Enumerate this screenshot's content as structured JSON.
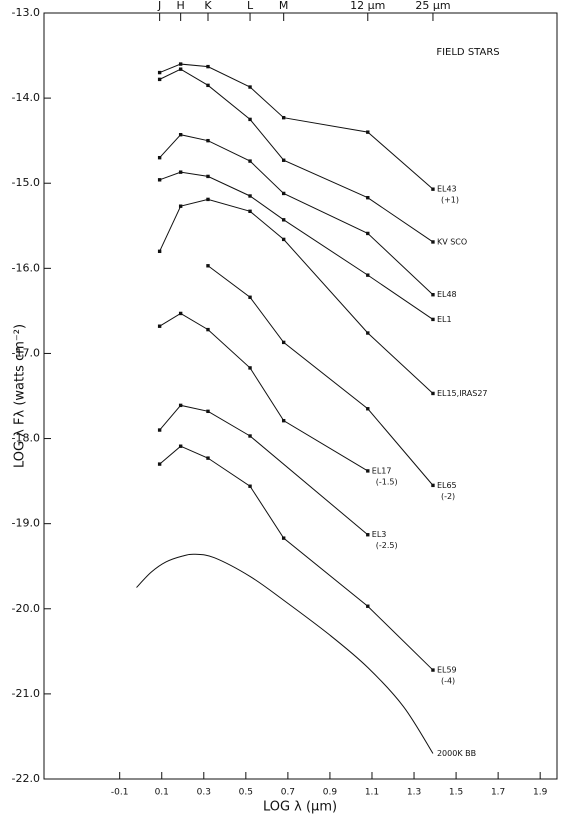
{
  "chart_data": {
    "type": "line",
    "color": "#111111",
    "annotation": "FIELD STARS",
    "xlabel": "LOG λ (μm)",
    "ylabel": "LOG λ Fλ (watts cm⁻²)",
    "xlim": [
      -0.46,
      1.98
    ],
    "ylim": [
      -22.0,
      -13.0
    ],
    "xticks": [
      -0.1,
      0.1,
      0.3,
      0.5,
      0.7,
      0.9,
      1.1,
      1.3,
      1.5,
      1.7,
      1.9
    ],
    "yticks": [
      {
        "value": -13.0,
        "label": "-13.0"
      },
      {
        "value": -14.0,
        "label": "-14.0"
      },
      {
        "value": -15.0,
        "label": "-15.0"
      },
      {
        "value": -16.0,
        "label": "-16.0"
      },
      {
        "value": -17.0,
        "label": "-17.0"
      },
      {
        "value": -18.0,
        "label": "-18.0"
      },
      {
        "value": -19.0,
        "label": "-19.0"
      },
      {
        "value": -20.0,
        "label": "-20.0"
      },
      {
        "value": -21.0,
        "label": "-21.0"
      },
      {
        "value": -22.0,
        "label": "-22.0"
      }
    ],
    "top_ticks": [
      {
        "value": 0.09,
        "label": "J"
      },
      {
        "value": 0.19,
        "label": "H"
      },
      {
        "value": 0.32,
        "label": "K"
      },
      {
        "value": 0.52,
        "label": "L"
      },
      {
        "value": 0.68,
        "label": "M"
      },
      {
        "value": 1.08,
        "label": "12 μm"
      },
      {
        "value": 1.39,
        "label": "25 μm"
      }
    ],
    "series": [
      {
        "name": "EL43",
        "note": "(+1)",
        "x": [
          0.09,
          0.19,
          0.32,
          0.52,
          0.68,
          1.08,
          1.39
        ],
        "values": [
          -13.7,
          -13.6,
          -13.63,
          -13.87,
          -14.23,
          -14.4,
          -15.07
        ]
      },
      {
        "name": "KV SCO",
        "x": [
          0.09,
          0.19,
          0.32,
          0.52,
          0.68,
          1.08,
          1.39
        ],
        "values": [
          -13.78,
          -13.66,
          -13.85,
          -14.25,
          -14.73,
          -15.17,
          -15.69
        ]
      },
      {
        "name": "EL48",
        "x": [
          0.09,
          0.19,
          0.32,
          0.52,
          0.68,
          1.08,
          1.39
        ],
        "values": [
          -14.7,
          -14.43,
          -14.5,
          -14.74,
          -15.12,
          -15.59,
          -16.31
        ]
      },
      {
        "name": "EL1",
        "x": [
          0.09,
          0.19,
          0.32,
          0.52,
          0.68,
          1.08,
          1.39
        ],
        "values": [
          -14.96,
          -14.87,
          -14.92,
          -15.15,
          -15.43,
          -16.08,
          -16.6
        ]
      },
      {
        "name": "EL15,IRAS27",
        "x": [
          0.09,
          0.19,
          0.32,
          0.52,
          0.68,
          1.08,
          1.39
        ],
        "values": [
          -15.8,
          -15.27,
          -15.19,
          -15.33,
          -15.66,
          -16.76,
          -17.47
        ]
      },
      {
        "name": "EL65",
        "note": "(-2)",
        "x": [
          0.32,
          0.52,
          0.68,
          1.08,
          1.39
        ],
        "values": [
          -15.97,
          -16.34,
          -16.87,
          -17.65,
          -18.55
        ]
      },
      {
        "name": "EL17",
        "note": "(-1.5)",
        "x": [
          0.09,
          0.19,
          0.32,
          0.52,
          0.68,
          1.08
        ],
        "values": [
          -16.68,
          -16.53,
          -16.72,
          -17.17,
          -17.79,
          -18.38
        ]
      },
      {
        "name": "EL3",
        "note": "(-2.5)",
        "x": [
          0.09,
          0.19,
          0.32,
          0.52,
          1.08
        ],
        "values": [
          -17.9,
          -17.61,
          -17.68,
          -17.97,
          -19.13
        ]
      },
      {
        "name": "EL59",
        "note": "(-4)",
        "x": [
          0.09,
          0.19,
          0.32,
          0.52,
          0.68,
          1.08,
          1.39
        ],
        "values": [
          -18.3,
          -18.09,
          -18.23,
          -18.56,
          -19.17,
          -19.97,
          -20.72
        ]
      },
      {
        "name": "2000K BB",
        "smooth": true,
        "x": [
          -0.02,
          0.05,
          0.12,
          0.2,
          0.26,
          0.35,
          0.52,
          0.68,
          0.9,
          1.08,
          1.25,
          1.39
        ],
        "values": [
          -19.75,
          -19.57,
          -19.45,
          -19.38,
          -19.36,
          -19.4,
          -19.62,
          -19.9,
          -20.31,
          -20.69,
          -21.15,
          -21.7
        ]
      }
    ]
  }
}
